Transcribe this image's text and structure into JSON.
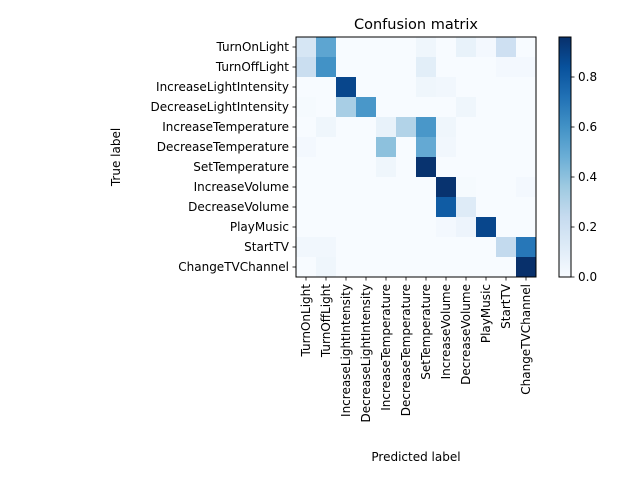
{
  "chart_data": {
    "type": "heatmap",
    "title": "Confusion matrix",
    "xlabel": "Predicted label",
    "ylabel": "True label",
    "labels": [
      "TurnOnLight",
      "TurnOffLight",
      "IncreaseLightIntensity",
      "DecreaseLightIntensity",
      "IncreaseTemperature",
      "DecreaseTemperature",
      "SetTemperature",
      "IncreaseVolume",
      "DecreaseVolume",
      "PlayMusic",
      "StartTV",
      "ChangeTVChannel"
    ],
    "matrix": [
      [
        0.16,
        0.52,
        0.0,
        0.0,
        0.0,
        0.0,
        0.04,
        0.0,
        0.07,
        0.02,
        0.2,
        0.0
      ],
      [
        0.22,
        0.6,
        0.0,
        0.0,
        0.0,
        0.0,
        0.1,
        0.0,
        0.0,
        0.0,
        0.02,
        0.02
      ],
      [
        0.0,
        0.0,
        0.88,
        0.0,
        0.0,
        0.0,
        0.04,
        0.03,
        0.0,
        0.0,
        0.0,
        0.0
      ],
      [
        0.01,
        0.0,
        0.33,
        0.58,
        0.0,
        0.0,
        0.0,
        0.0,
        0.04,
        0.0,
        0.0,
        0.0
      ],
      [
        0.0,
        0.04,
        0.0,
        0.0,
        0.07,
        0.3,
        0.58,
        0.04,
        0.0,
        0.0,
        0.0,
        0.0
      ],
      [
        0.02,
        0.0,
        0.0,
        0.0,
        0.4,
        0.0,
        0.5,
        0.03,
        0.0,
        0.0,
        0.0,
        0.0
      ],
      [
        0.0,
        0.0,
        0.0,
        0.0,
        0.04,
        0.0,
        0.95,
        0.0,
        0.0,
        0.0,
        0.0,
        0.0
      ],
      [
        0.0,
        0.0,
        0.0,
        0.0,
        0.0,
        0.0,
        0.0,
        0.95,
        0.01,
        0.0,
        0.0,
        0.02
      ],
      [
        0.0,
        0.0,
        0.0,
        0.0,
        0.0,
        0.0,
        0.0,
        0.8,
        0.12,
        0.0,
        0.0,
        0.0
      ],
      [
        0.0,
        0.0,
        0.0,
        0.0,
        0.0,
        0.0,
        0.0,
        0.02,
        0.05,
        0.88,
        0.0,
        0.0
      ],
      [
        0.03,
        0.03,
        0.0,
        0.0,
        0.0,
        0.0,
        0.0,
        0.0,
        0.0,
        0.0,
        0.25,
        0.7
      ],
      [
        0.0,
        0.04,
        0.0,
        0.0,
        0.0,
        0.0,
        0.0,
        0.0,
        0.0,
        0.0,
        0.0,
        0.96
      ]
    ],
    "colorbar": {
      "min": 0.0,
      "max": 0.96,
      "ticks": [
        0.0,
        0.2,
        0.4,
        0.6,
        0.8
      ],
      "tick_labels": [
        "0.0",
        "0.2",
        "0.4",
        "0.6",
        "0.8"
      ]
    },
    "colormap": "Blues",
    "grid": false
  }
}
